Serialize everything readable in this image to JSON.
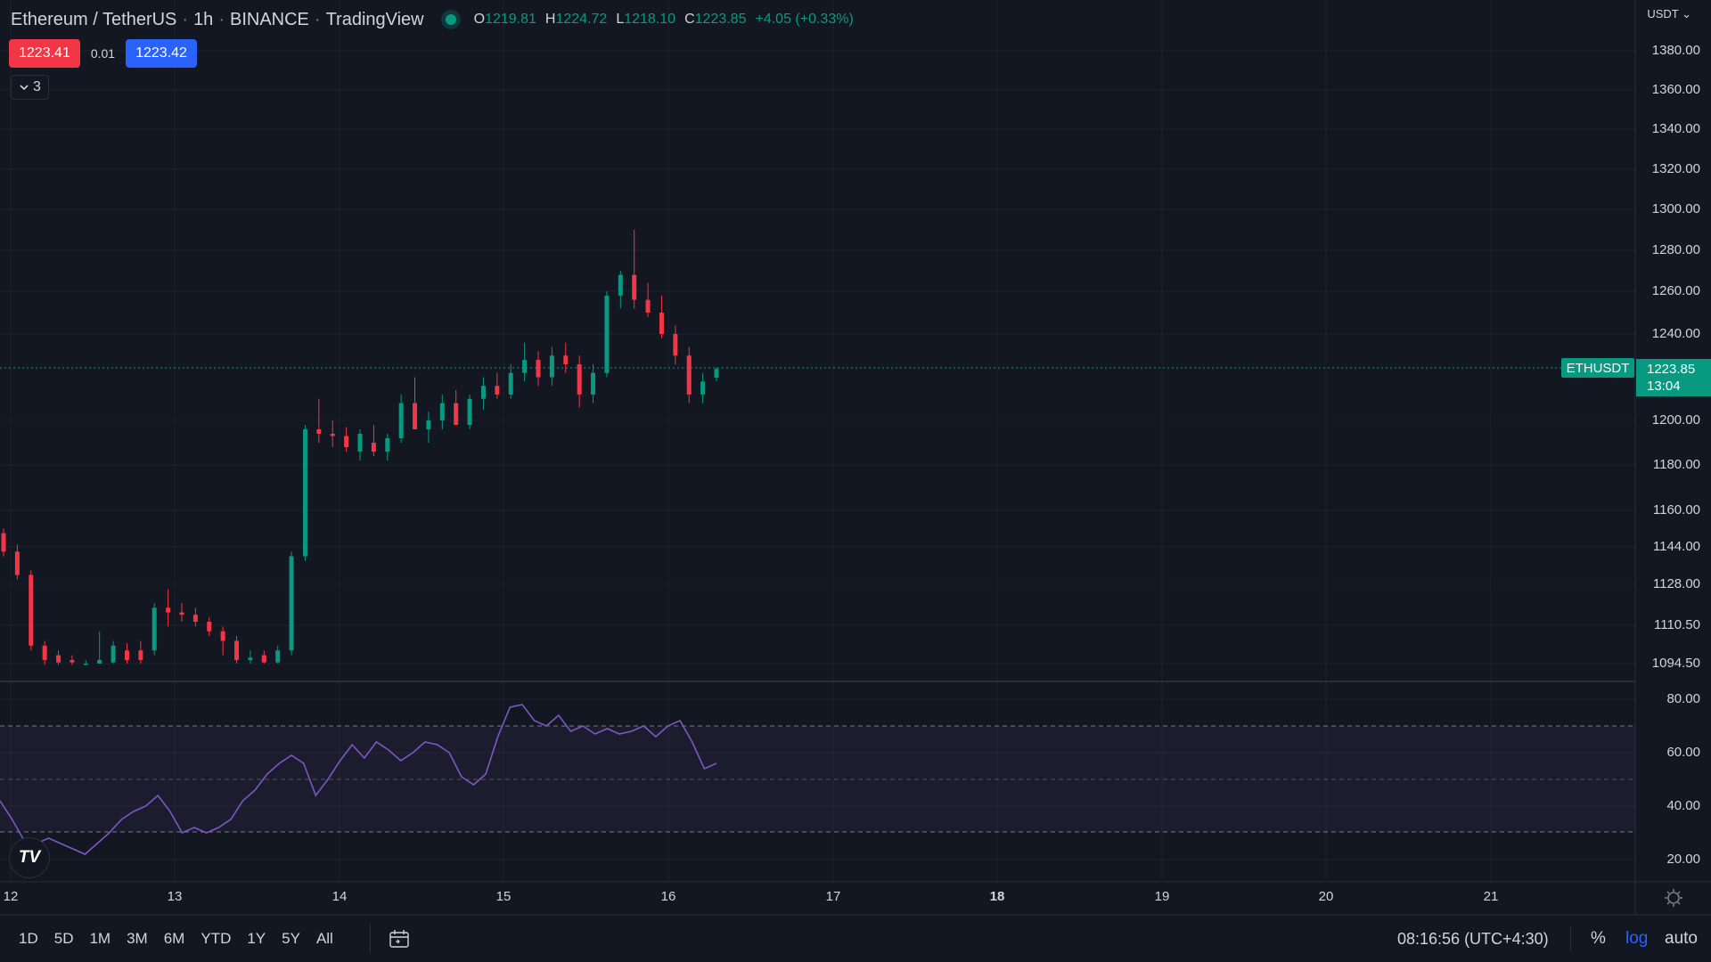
{
  "header": {
    "symbol": "Ethereum / TetherUS",
    "interval": "1h",
    "exchange": "BINANCE",
    "platform": "TradingView",
    "ohlc": {
      "o_label": "O",
      "o": "1219.81",
      "h_label": "H",
      "h": "1224.72",
      "l_label": "L",
      "l": "1218.10",
      "c_label": "C",
      "c": "1223.85",
      "change": "+4.05 (+0.33%)"
    }
  },
  "quote": {
    "sell": "1223.41",
    "spread": "0.01",
    "buy": "1223.42"
  },
  "indicators_toggle": {
    "count": "3"
  },
  "price_axis": {
    "currency": "USDT",
    "labels": [
      "1380.00",
      "1360.00",
      "1340.00",
      "1320.00",
      "1300.00",
      "1280.00",
      "1260.00",
      "1240.00",
      "1200.00",
      "1180.00",
      "1160.00",
      "1144.00",
      "1128.00",
      "1110.50",
      "1094.50"
    ],
    "last_price": "1223.85",
    "countdown": "13:04",
    "ticker_tag": "ETHUSDT"
  },
  "rsi_axis": {
    "labels": [
      "80.00",
      "60.00",
      "40.00",
      "20.00"
    ]
  },
  "time_axis": {
    "labels": [
      "12",
      "13",
      "14",
      "15",
      "16",
      "17",
      "18",
      "19",
      "20",
      "21"
    ],
    "bold_label": "18"
  },
  "bottom_bar": {
    "ranges": [
      "1D",
      "5D",
      "1M",
      "3M",
      "6M",
      "YTD",
      "1Y",
      "5Y",
      "All"
    ],
    "clock": "08:16:56 (UTC+4:30)",
    "percent": "%",
    "log": "log",
    "auto": "auto"
  },
  "colors": {
    "background": "#131722",
    "up": "#089981",
    "down": "#f23645",
    "rsi_line": "#7e57c2",
    "buy": "#2962ff"
  },
  "icons": {
    "collapse": "chevron-down-icon",
    "date_range": "calendar-icon",
    "settings": "gear-icon",
    "logo": "tradingview-logo"
  },
  "chart_data": {
    "type": "candlestick",
    "price_ticks": [
      1380,
      1360,
      1340,
      1320,
      1300,
      1280,
      1260,
      1240,
      1200,
      1180,
      1160,
      1144,
      1128,
      1110.5,
      1094.5
    ],
    "x_labels": [
      "12",
      "13",
      "14",
      "15",
      "16",
      "17",
      "18",
      "19",
      "20",
      "21"
    ],
    "approx_candles": [
      {
        "o": 1150,
        "h": 1152,
        "l": 1140,
        "c": 1142
      },
      {
        "o": 1142,
        "h": 1145,
        "l": 1130,
        "c": 1132
      },
      {
        "o": 1132,
        "h": 1134,
        "l": 1100,
        "c": 1102
      },
      {
        "o": 1102,
        "h": 1104,
        "l": 1094,
        "c": 1096
      },
      {
        "o": 1098,
        "h": 1100,
        "l": 1094,
        "c": 1095
      },
      {
        "o": 1096,
        "h": 1098,
        "l": 1094,
        "c": 1095
      },
      {
        "o": 1094,
        "h": 1096,
        "l": 1094,
        "c": 1094.5
      },
      {
        "o": 1094.5,
        "h": 1108,
        "l": 1094.5,
        "c": 1096
      },
      {
        "o": 1095,
        "h": 1104,
        "l": 1094.5,
        "c": 1102
      },
      {
        "o": 1100,
        "h": 1103,
        "l": 1094.5,
        "c": 1096
      },
      {
        "o": 1100,
        "h": 1104,
        "l": 1094.5,
        "c": 1096
      },
      {
        "o": 1100,
        "h": 1120,
        "l": 1098,
        "c": 1118
      },
      {
        "o": 1118,
        "h": 1126,
        "l": 1110,
        "c": 1116
      },
      {
        "o": 1116,
        "h": 1120,
        "l": 1112,
        "c": 1115
      },
      {
        "o": 1115,
        "h": 1118,
        "l": 1110,
        "c": 1112
      },
      {
        "o": 1112,
        "h": 1114,
        "l": 1106,
        "c": 1108
      },
      {
        "o": 1108,
        "h": 1110,
        "l": 1098,
        "c": 1104
      },
      {
        "o": 1104,
        "h": 1106,
        "l": 1094.5,
        "c": 1096
      },
      {
        "o": 1096,
        "h": 1100,
        "l": 1094.5,
        "c": 1097
      },
      {
        "o": 1098,
        "h": 1100,
        "l": 1094.5,
        "c": 1095
      },
      {
        "o": 1095,
        "h": 1102,
        "l": 1094.5,
        "c": 1100
      },
      {
        "o": 1100,
        "h": 1142,
        "l": 1098,
        "c": 1140
      },
      {
        "o": 1140,
        "h": 1198,
        "l": 1138,
        "c": 1196
      },
      {
        "o": 1196,
        "h": 1210,
        "l": 1190,
        "c": 1194
      },
      {
        "o": 1194,
        "h": 1200,
        "l": 1188,
        "c": 1193
      },
      {
        "o": 1193,
        "h": 1197,
        "l": 1186,
        "c": 1188
      },
      {
        "o": 1186,
        "h": 1196,
        "l": 1182,
        "c": 1194
      },
      {
        "o": 1190,
        "h": 1198,
        "l": 1184,
        "c": 1186
      },
      {
        "o": 1186,
        "h": 1194,
        "l": 1182,
        "c": 1192
      },
      {
        "o": 1192,
        "h": 1212,
        "l": 1190,
        "c": 1208
      },
      {
        "o": 1208,
        "h": 1220,
        "l": 1200,
        "c": 1196
      },
      {
        "o": 1196,
        "h": 1204,
        "l": 1190,
        "c": 1200
      },
      {
        "o": 1200,
        "h": 1212,
        "l": 1196,
        "c": 1208
      },
      {
        "o": 1208,
        "h": 1214,
        "l": 1202,
        "c": 1198
      },
      {
        "o": 1198,
        "h": 1212,
        "l": 1196,
        "c": 1210
      },
      {
        "o": 1210,
        "h": 1220,
        "l": 1205,
        "c": 1216
      },
      {
        "o": 1216,
        "h": 1222,
        "l": 1210,
        "c": 1212
      },
      {
        "o": 1212,
        "h": 1226,
        "l": 1210,
        "c": 1222
      },
      {
        "o": 1222,
        "h": 1236,
        "l": 1218,
        "c": 1228
      },
      {
        "o": 1228,
        "h": 1232,
        "l": 1216,
        "c": 1220
      },
      {
        "o": 1220,
        "h": 1234,
        "l": 1216,
        "c": 1230
      },
      {
        "o": 1230,
        "h": 1236,
        "l": 1222,
        "c": 1226
      },
      {
        "o": 1226,
        "h": 1230,
        "l": 1206,
        "c": 1212
      },
      {
        "o": 1212,
        "h": 1226,
        "l": 1208,
        "c": 1222
      },
      {
        "o": 1222,
        "h": 1260,
        "l": 1220,
        "c": 1258
      },
      {
        "o": 1258,
        "h": 1270,
        "l": 1252,
        "c": 1268
      },
      {
        "o": 1268,
        "h": 1290,
        "l": 1252,
        "c": 1256
      },
      {
        "o": 1256,
        "h": 1264,
        "l": 1248,
        "c": 1250
      },
      {
        "o": 1250,
        "h": 1258,
        "l": 1238,
        "c": 1240
      },
      {
        "o": 1240,
        "h": 1244,
        "l": 1226,
        "c": 1230
      },
      {
        "o": 1230,
        "h": 1234,
        "l": 1208,
        "c": 1212
      },
      {
        "o": 1212,
        "h": 1222,
        "l": 1208,
        "c": 1218
      },
      {
        "o": 1219.81,
        "h": 1224.72,
        "l": 1218.1,
        "c": 1223.85
      }
    ],
    "rsi": {
      "levels": [
        70,
        50,
        30
      ],
      "ticks": [
        80,
        60,
        40,
        20
      ],
      "values": [
        42,
        35,
        27,
        26,
        28,
        26,
        24,
        22,
        26,
        30,
        35,
        38,
        40,
        44,
        38,
        30,
        32,
        30,
        32,
        35,
        42,
        46,
        52,
        56,
        59,
        56,
        44,
        50,
        57,
        63,
        58,
        64,
        61,
        57,
        60,
        64,
        63,
        60,
        51,
        48,
        52,
        66,
        77,
        78,
        72,
        70,
        74,
        68,
        70,
        67,
        69,
        67,
        68,
        70,
        66,
        70,
        72,
        64,
        54,
        56
      ]
    }
  }
}
